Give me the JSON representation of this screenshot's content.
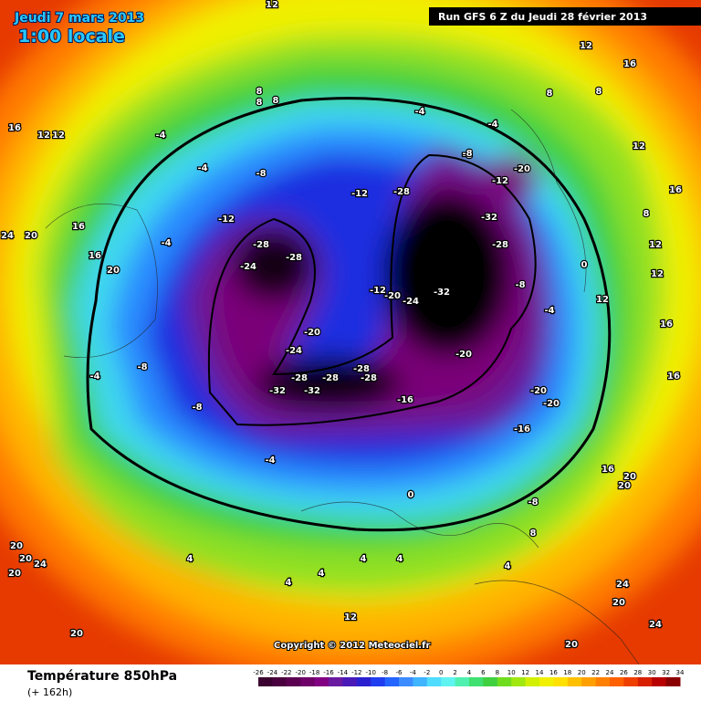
{
  "header": {
    "date": "Jeudi 7 mars 2013",
    "time": "1:00 locale",
    "run": "Run GFS 6 Z du Jeudi 28 février 2013",
    "copyright": "Copyright © 2012 Meteociel.fr"
  },
  "footer": {
    "title": "Température 850hPa",
    "lead": "(+ 162h)"
  },
  "legend": {
    "ticks": [
      -26,
      -24,
      -22,
      -20,
      -18,
      -16,
      -14,
      -12,
      -10,
      -8,
      -6,
      -4,
      -2,
      0,
      2,
      4,
      6,
      8,
      10,
      12,
      14,
      16,
      18,
      20,
      22,
      24,
      26,
      28,
      30,
      32,
      34
    ],
    "colors": [
      "#3a0030",
      "#4a003e",
      "#5c0052",
      "#6e0068",
      "#820082",
      "#6a1aa0",
      "#4a1ab8",
      "#2a20d0",
      "#1e3ef0",
      "#2464ff",
      "#3c8cff",
      "#40b4ff",
      "#50dcff",
      "#60f4f0",
      "#50f0b0",
      "#40e070",
      "#40d040",
      "#70dc20",
      "#a0e810",
      "#d0f000",
      "#f0f000",
      "#ffe000",
      "#ffc000",
      "#ffa000",
      "#ff8000",
      "#ff6000",
      "#f04000",
      "#d82000",
      "#b80000",
      "#8a0000"
    ]
  },
  "contour_labels": [
    "12",
    "12",
    "16",
    "16",
    "12",
    "12",
    "-4",
    "8",
    "8",
    "8",
    "8",
    "8",
    "12",
    "16",
    "-4",
    "-8",
    "-4",
    "-12",
    "-8",
    "-4",
    "-20",
    "-12",
    "-28",
    "-32",
    "-12",
    "-28",
    "-28",
    "-24",
    "-28",
    "-32",
    "-12",
    "-20",
    "-24",
    "-20",
    "-24",
    "-8",
    "-4",
    "-8",
    "-28",
    "-28",
    "-28",
    "-32",
    "-32",
    "-28",
    "-16",
    "-20",
    "-20",
    "-20",
    "-16",
    "-8",
    "-4",
    "-4",
    "-8",
    "0",
    "0",
    "-4",
    "4",
    "4",
    "24",
    "20",
    "16",
    "16",
    "20",
    "16",
    "8",
    "12",
    "12",
    "16",
    "16",
    "20",
    "20",
    "20",
    "20",
    "24",
    "20",
    "20",
    "20",
    "24",
    "24",
    "20",
    "4",
    "4",
    "8",
    "4",
    "12",
    "0",
    "-8",
    "4",
    "12"
  ]
}
